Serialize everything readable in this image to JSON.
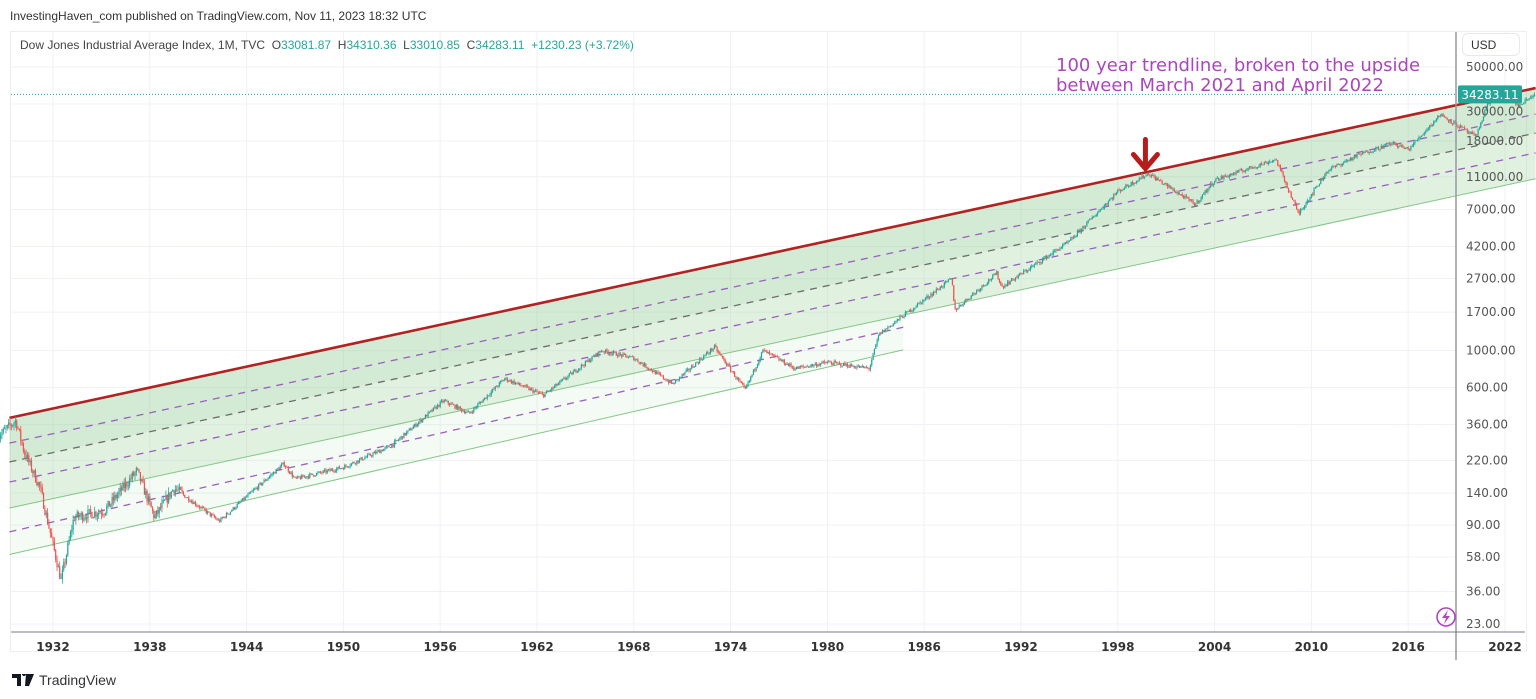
{
  "header": {
    "published": "InvestingHaven_com published on TradingView.com, Nov 11, 2023 18:32 UTC"
  },
  "legend": {
    "symbol": "Dow Jones Industrial Average Index, 1M, TVC",
    "open_label": "O",
    "open": "33081.87",
    "high_label": "H",
    "high": "34310.36",
    "low_label": "L",
    "low": "33010.85",
    "close_label": "C",
    "close": "34283.11",
    "change": "+1230.23",
    "change_pct": "(+3.72%)"
  },
  "currency_button": "USD",
  "annotation": {
    "line1": "100 year trendline, broken to the upside",
    "line2": "between March 2021 and April 2022"
  },
  "footer": {
    "brand": "TradingView"
  },
  "colors": {
    "up": "#26a69a",
    "down": "#ef5350",
    "trendline": "#b22222",
    "channel_dashed": "#9c5fbf",
    "channel_fill": "#a5d6a7",
    "annotation": "#ab47bc",
    "price_tag": "#26a69a"
  },
  "icons": {
    "arrow": "red-down-arrow",
    "lightning": "lightning-icon"
  },
  "chart_data": {
    "type": "candlestick",
    "scale": "log",
    "interval": "1M",
    "grid": true,
    "xlim": [
      1928.5,
      2024.0
    ],
    "ylim": [
      20,
      60000
    ],
    "x_ticks": [
      "1932",
      "1938",
      "1944",
      "1950",
      "1956",
      "1962",
      "1968",
      "1974",
      "1980",
      "1986",
      "1992",
      "1998",
      "2004",
      "2010",
      "2016",
      "2022"
    ],
    "y_ticks": [
      "50000.00",
      "30000.00",
      "18000.00",
      "11000.00",
      "7000.00",
      "4200.00",
      "2700.00",
      "1700.00",
      "1000.00",
      "600.00",
      "360.00",
      "220.00",
      "140.00",
      "90.00",
      "58.00",
      "36.00",
      "23.00"
    ],
    "last_price": "34283.11",
    "series": [
      [
        1928.5,
        300
      ],
      [
        1929.7,
        380
      ],
      [
        1930.2,
        250
      ],
      [
        1931.2,
        150
      ],
      [
        1932.5,
        42
      ],
      [
        1933.3,
        100
      ],
      [
        1935.2,
        110
      ],
      [
        1937.2,
        190
      ],
      [
        1938.3,
        100
      ],
      [
        1939.5,
        150
      ],
      [
        1942.3,
        95
      ],
      [
        1946.3,
        210
      ],
      [
        1947,
        170
      ],
      [
        1950,
        200
      ],
      [
        1953,
        270
      ],
      [
        1956.2,
        500
      ],
      [
        1957.8,
        420
      ],
      [
        1960,
        680
      ],
      [
        1962.4,
        540
      ],
      [
        1966,
        1000
      ],
      [
        1968,
        900
      ],
      [
        1970.4,
        630
      ],
      [
        1973,
        1050
      ],
      [
        1974.9,
        580
      ],
      [
        1976,
        1000
      ],
      [
        1978,
        780
      ],
      [
        1980,
        850
      ],
      [
        1982.6,
        780
      ],
      [
        1983.2,
        1250
      ],
      [
        1987.7,
        2700
      ],
      [
        1987.9,
        1750
      ],
      [
        1990.5,
        2900
      ],
      [
        1990.8,
        2400
      ],
      [
        1995,
        4500
      ],
      [
        1998,
        9000
      ],
      [
        1999.9,
        11500
      ],
      [
        2002.8,
        7500
      ],
      [
        2004,
        10500
      ],
      [
        2007.8,
        14000
      ],
      [
        2009.2,
        6600
      ],
      [
        2011,
        12000
      ],
      [
        2013,
        15000
      ],
      [
        2015,
        17500
      ],
      [
        2016,
        16000
      ],
      [
        2018,
        26000
      ],
      [
        2020.2,
        19000
      ],
      [
        2020.9,
        30000
      ],
      [
        2022,
        36500
      ],
      [
        2022.8,
        29000
      ],
      [
        2023.85,
        34283
      ]
    ],
    "trendlines": [
      {
        "kind": "trendline",
        "style": "solid",
        "from": [
          1929.3,
          395
        ],
        "to": [
          2023.9,
          37400
        ]
      },
      {
        "kind": "channel",
        "style": "dashed",
        "from": [
          1929.3,
          279
        ],
        "to": [
          2023.9,
          26100
        ]
      },
      {
        "kind": "channel-mid",
        "style": "dashed",
        "from": [
          1929.3,
          215
        ],
        "to": [
          2023.9,
          20100
        ]
      },
      {
        "kind": "channel",
        "style": "dashed",
        "from": [
          1929.3,
          163
        ],
        "to": [
          2023.9,
          15300
        ]
      },
      {
        "kind": "channel-bottom",
        "style": "solid",
        "from": [
          1929.3,
          114
        ],
        "to": [
          2023.9,
          10700
        ]
      },
      {
        "kind": "lower-channel",
        "style": "dashed",
        "from": [
          1929.3,
          82
        ],
        "to": [
          1984.7,
          1380
        ]
      },
      {
        "kind": "lower-channel-bottom",
        "style": "solid",
        "from": [
          1929.3,
          60
        ],
        "to": [
          1984.7,
          1010
        ]
      }
    ],
    "marker": {
      "type": "arrow",
      "at": [
        1999.9,
        11500
      ]
    }
  }
}
